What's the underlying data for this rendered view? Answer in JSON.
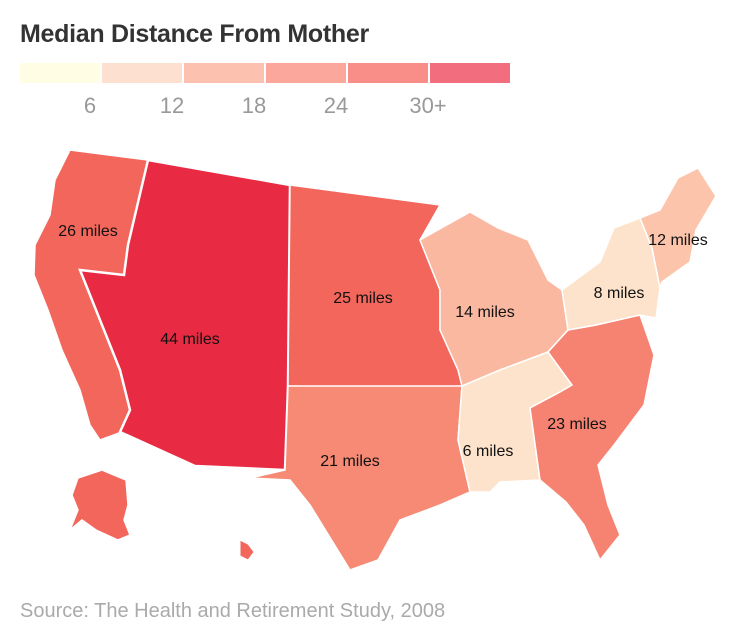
{
  "title": "Median Distance From Mother",
  "legend": {
    "colors": [
      "#fffee5",
      "#fde0cf",
      "#fcc1af",
      "#fba79b",
      "#f98d88",
      "#f26e7f"
    ],
    "ticks": [
      "6",
      "12",
      "18",
      "24",
      "30+"
    ]
  },
  "regions": [
    {
      "name": "Pacific",
      "label": "26 miles",
      "color": "#f2665b"
    },
    {
      "name": "Mountain",
      "label": "44 miles",
      "color": "#e82a43"
    },
    {
      "name": "West North Central",
      "label": "25 miles",
      "color": "#f2665b"
    },
    {
      "name": "East North Central",
      "label": "14 miles",
      "color": "#fbb8a1"
    },
    {
      "name": "Middle Atlantic",
      "label": "8 miles",
      "color": "#fde3cb"
    },
    {
      "name": "New England",
      "label": "12 miles",
      "color": "#fcc5ab"
    },
    {
      "name": "South Atlantic",
      "label": "23 miles",
      "color": "#f68372"
    },
    {
      "name": "East South Central",
      "label": "6 miles",
      "color": "#fde3cb"
    },
    {
      "name": "West South Central",
      "label": "21 miles",
      "color": "#f68a74"
    }
  ],
  "source": "Source: The Health and Retirement Study, 2008"
}
